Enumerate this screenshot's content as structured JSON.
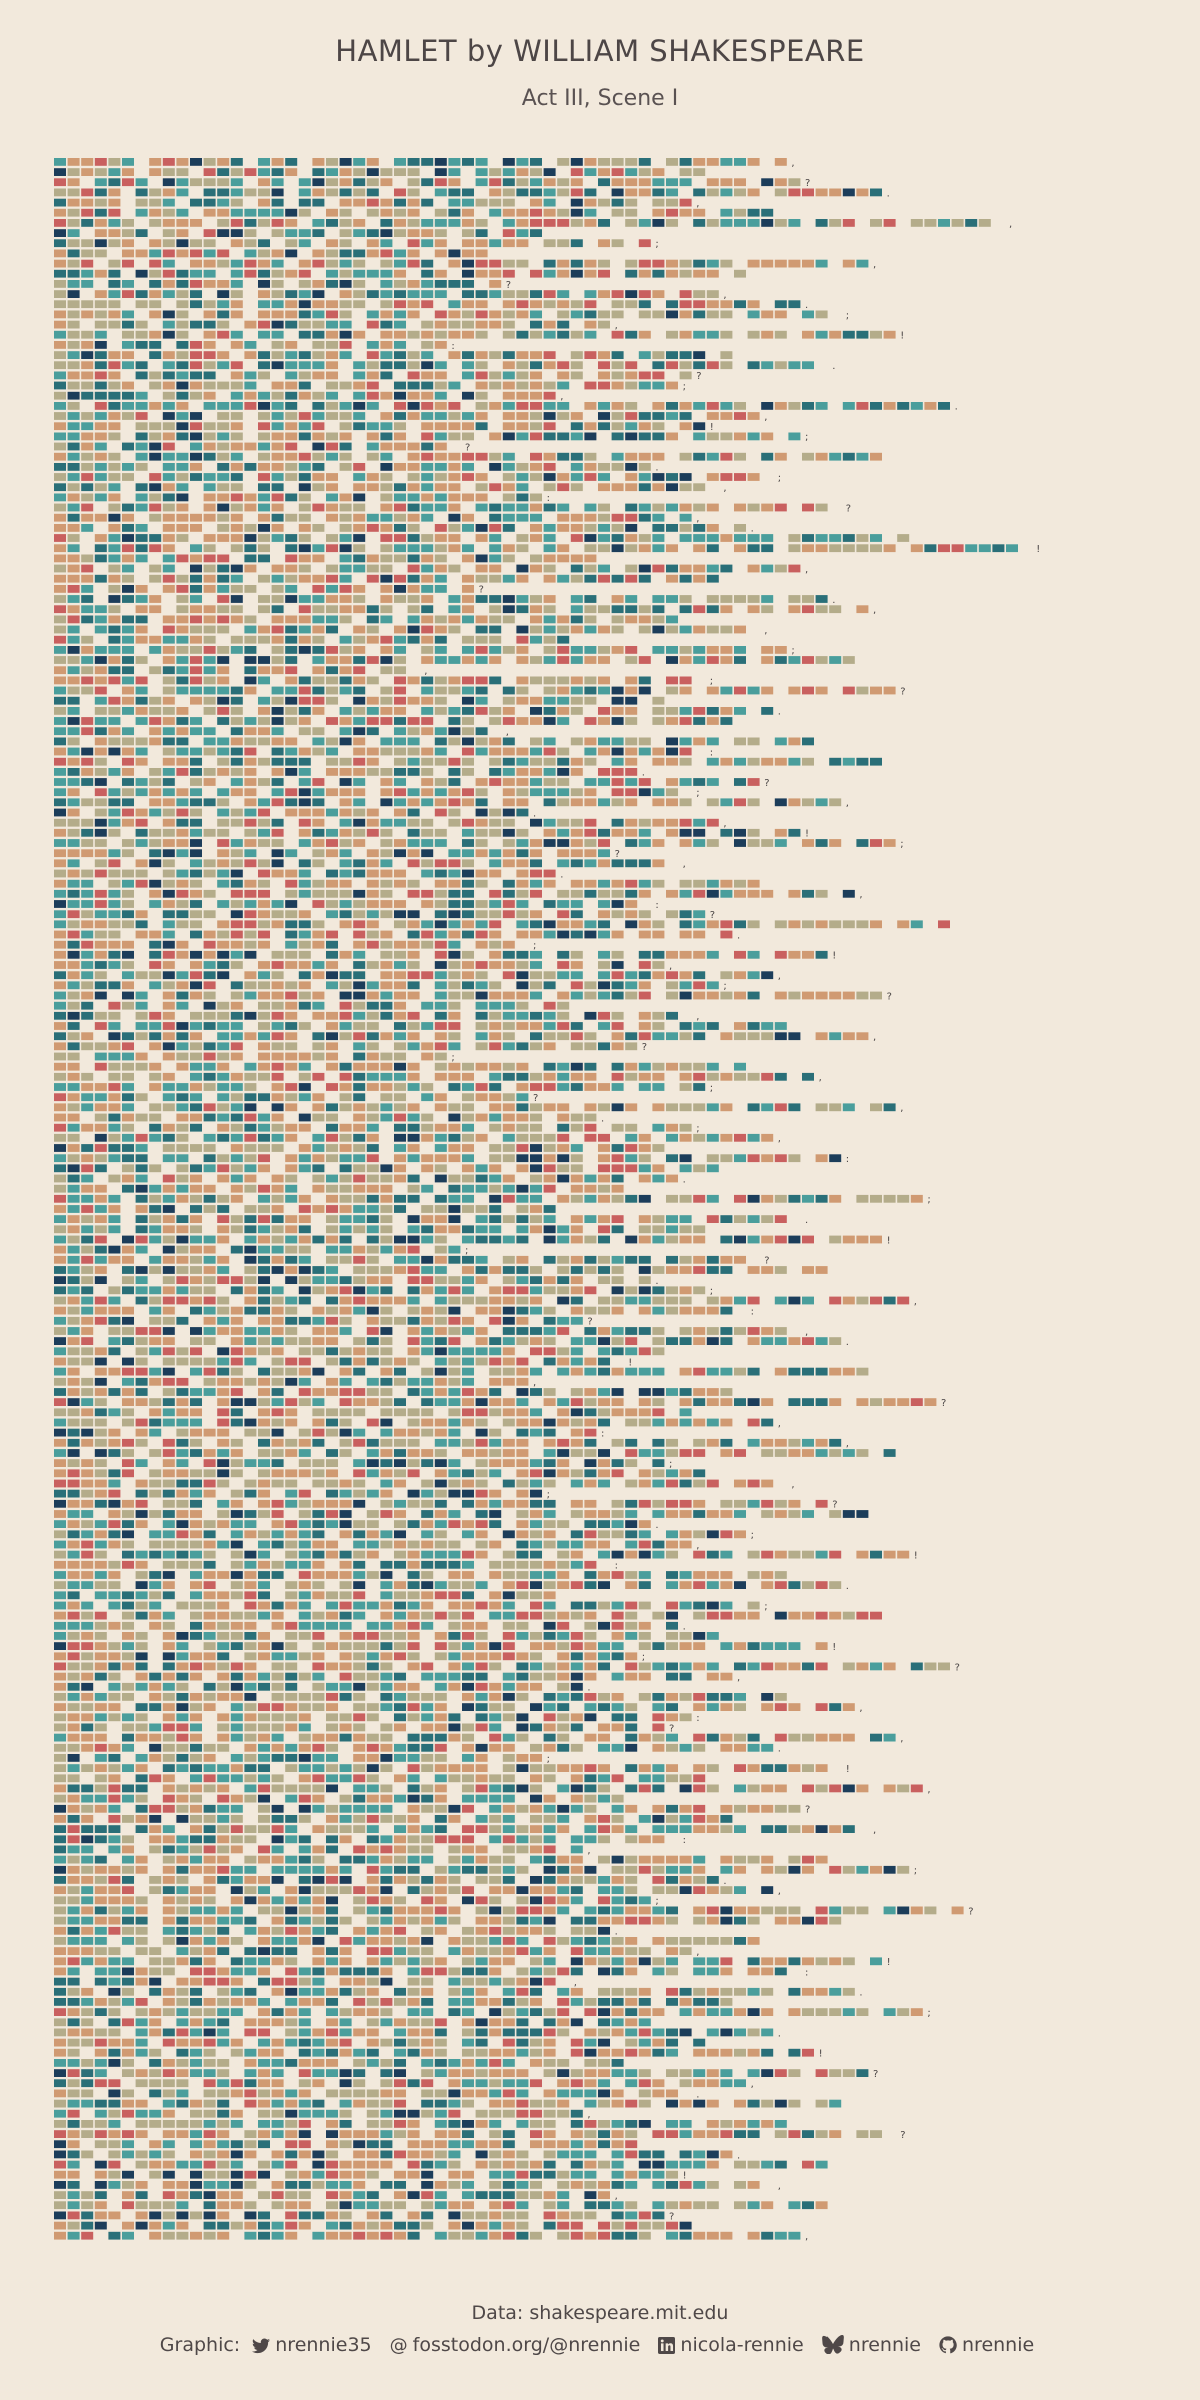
{
  "header": {
    "title": "HAMLET by WILLIAM SHAKESPEARE",
    "subtitle": "Act III, Scene I"
  },
  "caption": {
    "data_source": "Data: shakespeare.mit.edu",
    "graphic_label": "Graphic:",
    "twitter": "nrennie35",
    "mastodon": "fosstodon.org/@nrennie",
    "linkedin": "nicola-rennie",
    "bluesky": "nrennie",
    "github": "nrennie"
  },
  "icons": [
    "twitter-icon",
    "mastodon-icon",
    "linkedin-icon",
    "bluesky-icon",
    "github-icon"
  ],
  "colors": {
    "background": "#f2e9dc",
    "text": "#4a4545",
    "palette": [
      "#d09a72",
      "#b4ac8a",
      "#4a9e9c",
      "#2a6f78",
      "#c9605f",
      "#1c3d5a"
    ]
  },
  "chart_data": {
    "type": "heatmap",
    "description_units": "one row per line of text, one tile per letter, gaps for spaces, punctuation marks drawn as glyphs",
    "rows": 205,
    "row_lengths": [
      54,
      48,
      55,
      61,
      47,
      53,
      70,
      36,
      44,
      32,
      60,
      51,
      33,
      49,
      55,
      58,
      41,
      62,
      29,
      50,
      57,
      47,
      46,
      37,
      66,
      52,
      48,
      55,
      30,
      61,
      44,
      53,
      49,
      36,
      58,
      47,
      51,
      63,
      72,
      40,
      55,
      49,
      31,
      57,
      60,
      46,
      52,
      38,
      54,
      59,
      27,
      48,
      62,
      45,
      53,
      50,
      33,
      56,
      48,
      61,
      43,
      52,
      47,
      58,
      35,
      49,
      55,
      62,
      41,
      46,
      37,
      52,
      59,
      44,
      48,
      66,
      50,
      35,
      57,
      45,
      53,
      49,
      61,
      38,
      47,
      54,
      60,
      43,
      29,
      51,
      56,
      48,
      35,
      62,
      40,
      47,
      53,
      45,
      58,
      50,
      46,
      42,
      64,
      37,
      55,
      49,
      61,
      30,
      52,
      57,
      44,
      48,
      63,
      51,
      39,
      55,
      58,
      46,
      42,
      60,
      35,
      50,
      65,
      47,
      53,
      40,
      58,
      62,
      45,
      49,
      54,
      36,
      57,
      60,
      44,
      51,
      47,
      63,
      41,
      55,
      58,
      38,
      52,
      61,
      46,
      49,
      57,
      43,
      66,
      50,
      39,
      54,
      59,
      47,
      45,
      62,
      53,
      36,
      58,
      48,
      64,
      42,
      55,
      51,
      60,
      46,
      39,
      57,
      63,
      49,
      53,
      44,
      67,
      58,
      41,
      52,
      47,
      61,
      55,
      38,
      59,
      50,
      64,
      45,
      53,
      48,
      56,
      42,
      60,
      51,
      47,
      58,
      39,
      54,
      62,
      44,
      50,
      57,
      46,
      53,
      41,
      58,
      45,
      48,
      55
    ],
    "end_marks": [
      ",",
      ";",
      "?",
      ".",
      ",",
      ":",
      ",",
      "?",
      ";",
      ".",
      ",",
      ";",
      "?",
      ",",
      ".",
      ";",
      ",",
      "!",
      ":",
      ",",
      ".",
      "?",
      ";",
      ",",
      ".",
      ",",
      "!",
      ";",
      "?",
      ",",
      ".",
      ";",
      ",",
      ":",
      "?",
      ",",
      ".",
      ";",
      "!",
      ","
    ],
    "legend": []
  }
}
